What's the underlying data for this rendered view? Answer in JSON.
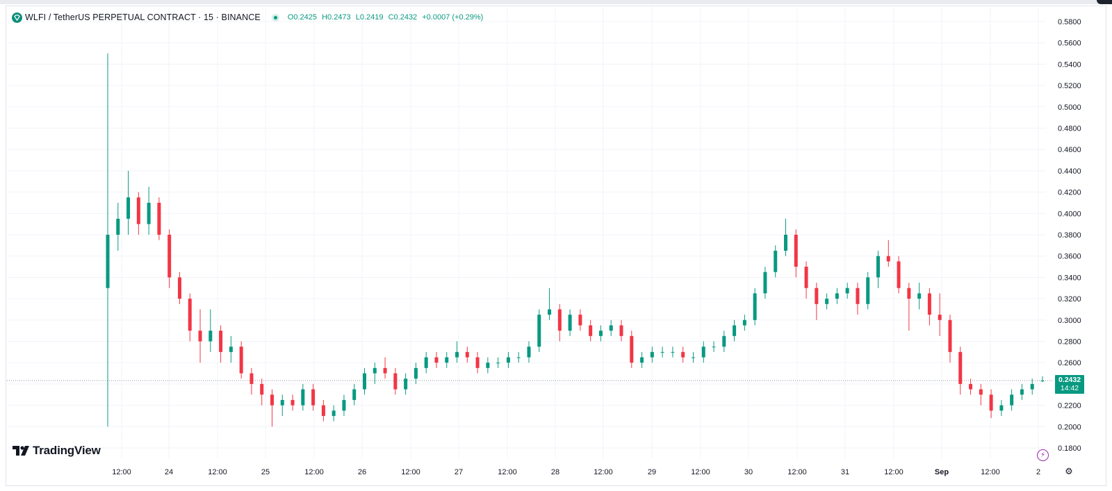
{
  "legend": {
    "symbol_text": "WLFI / TetherUS PERPETUAL CONTRACT · 15 · BINANCE",
    "open_key": "O",
    "open": "0.2425",
    "high_key": "H",
    "high": "0.2473",
    "low_key": "L",
    "low": "0.2419",
    "close_key": "C",
    "close": "0.2432",
    "change": "+0.0007 (+0.29%)"
  },
  "price_tag": {
    "price": "0.2432",
    "countdown": "14:42"
  },
  "brand": {
    "name": "TradingView"
  },
  "colors": {
    "up": "#089981",
    "down": "#f23645",
    "grid": "#f0f3fa",
    "axis_text": "#131722",
    "accent": "#9c27b0"
  },
  "icons": {
    "symbol_logo": "wlfi-logo-icon",
    "status": "market-open-dot-icon",
    "flash": "lightning-icon",
    "settings": "gear-icon"
  },
  "chart_data": {
    "type": "candlestick",
    "interval": "15",
    "y_axis": {
      "ticks": [
        "0.5800",
        "0.5600",
        "0.5400",
        "0.5200",
        "0.5000",
        "0.4800",
        "0.4600",
        "0.4400",
        "0.4200",
        "0.4000",
        "0.3800",
        "0.3600",
        "0.3400",
        "0.3200",
        "0.3000",
        "0.2800",
        "0.2600",
        "0.2400",
        "0.2200",
        "0.2000",
        "0.1800"
      ],
      "range": [
        0.17,
        0.585
      ],
      "position": "right"
    },
    "x_axis": {
      "ticks": [
        "12:00",
        "24",
        "12:00",
        "25",
        "12:00",
        "26",
        "12:00",
        "27",
        "12:00",
        "28",
        "12:00",
        "29",
        "12:00",
        "30",
        "12:00",
        "31",
        "12:00",
        "Sep",
        "12:00",
        "2"
      ]
    },
    "last_price": 0.2432,
    "grid": true,
    "series": [
      {
        "ohlc_points": [
          [
            0.33,
            0.55,
            0.2,
            0.38
          ],
          [
            0.38,
            0.41,
            0.365,
            0.395
          ],
          [
            0.395,
            0.44,
            0.38,
            0.415
          ],
          [
            0.415,
            0.42,
            0.38,
            0.39
          ],
          [
            0.39,
            0.425,
            0.38,
            0.41
          ],
          [
            0.41,
            0.415,
            0.375,
            0.38
          ],
          [
            0.38,
            0.385,
            0.33,
            0.34
          ],
          [
            0.34,
            0.345,
            0.315,
            0.32
          ],
          [
            0.32,
            0.325,
            0.28,
            0.29
          ],
          [
            0.29,
            0.31,
            0.26,
            0.28
          ],
          [
            0.28,
            0.31,
            0.27,
            0.29
          ],
          [
            0.29,
            0.295,
            0.26,
            0.27
          ],
          [
            0.27,
            0.285,
            0.26,
            0.275
          ],
          [
            0.275,
            0.28,
            0.245,
            0.25
          ],
          [
            0.25,
            0.255,
            0.23,
            0.24
          ],
          [
            0.24,
            0.245,
            0.22,
            0.23
          ],
          [
            0.23,
            0.235,
            0.2,
            0.22
          ],
          [
            0.22,
            0.23,
            0.21,
            0.225
          ],
          [
            0.225,
            0.23,
            0.215,
            0.22
          ],
          [
            0.22,
            0.24,
            0.215,
            0.235
          ],
          [
            0.235,
            0.24,
            0.215,
            0.22
          ],
          [
            0.22,
            0.225,
            0.205,
            0.21
          ],
          [
            0.21,
            0.22,
            0.205,
            0.215
          ],
          [
            0.215,
            0.23,
            0.21,
            0.225
          ],
          [
            0.225,
            0.24,
            0.22,
            0.235
          ],
          [
            0.235,
            0.255,
            0.23,
            0.25
          ],
          [
            0.25,
            0.26,
            0.24,
            0.255
          ],
          [
            0.255,
            0.265,
            0.245,
            0.25
          ],
          [
            0.25,
            0.255,
            0.23,
            0.235
          ],
          [
            0.235,
            0.25,
            0.23,
            0.245
          ],
          [
            0.245,
            0.26,
            0.24,
            0.255
          ],
          [
            0.255,
            0.27,
            0.25,
            0.265
          ],
          [
            0.265,
            0.27,
            0.255,
            0.26
          ],
          [
            0.26,
            0.27,
            0.255,
            0.265
          ],
          [
            0.265,
            0.28,
            0.26,
            0.27
          ],
          [
            0.27,
            0.275,
            0.26,
            0.265
          ],
          [
            0.265,
            0.27,
            0.25,
            0.255
          ],
          [
            0.255,
            0.265,
            0.25,
            0.26
          ],
          [
            0.26,
            0.265,
            0.255,
            0.26
          ],
          [
            0.26,
            0.27,
            0.255,
            0.265
          ],
          [
            0.265,
            0.27,
            0.26,
            0.265
          ],
          [
            0.265,
            0.28,
            0.26,
            0.275
          ],
          [
            0.275,
            0.31,
            0.27,
            0.305
          ],
          [
            0.305,
            0.33,
            0.3,
            0.31
          ],
          [
            0.31,
            0.315,
            0.28,
            0.29
          ],
          [
            0.29,
            0.31,
            0.285,
            0.305
          ],
          [
            0.305,
            0.31,
            0.29,
            0.295
          ],
          [
            0.295,
            0.3,
            0.28,
            0.285
          ],
          [
            0.285,
            0.295,
            0.28,
            0.29
          ],
          [
            0.29,
            0.3,
            0.285,
            0.295
          ],
          [
            0.295,
            0.3,
            0.28,
            0.285
          ],
          [
            0.285,
            0.29,
            0.255,
            0.26
          ],
          [
            0.26,
            0.27,
            0.255,
            0.265
          ],
          [
            0.265,
            0.275,
            0.26,
            0.27
          ],
          [
            0.27,
            0.275,
            0.265,
            0.27
          ],
          [
            0.27,
            0.275,
            0.265,
            0.27
          ],
          [
            0.27,
            0.275,
            0.26,
            0.265
          ],
          [
            0.265,
            0.27,
            0.26,
            0.265
          ],
          [
            0.265,
            0.28,
            0.26,
            0.275
          ],
          [
            0.275,
            0.28,
            0.27,
            0.275
          ],
          [
            0.275,
            0.29,
            0.27,
            0.285
          ],
          [
            0.285,
            0.3,
            0.28,
            0.295
          ],
          [
            0.295,
            0.305,
            0.29,
            0.3
          ],
          [
            0.3,
            0.33,
            0.295,
            0.325
          ],
          [
            0.325,
            0.35,
            0.32,
            0.345
          ],
          [
            0.345,
            0.37,
            0.34,
            0.365
          ],
          [
            0.365,
            0.395,
            0.36,
            0.38
          ],
          [
            0.38,
            0.385,
            0.34,
            0.35
          ],
          [
            0.35,
            0.355,
            0.32,
            0.33
          ],
          [
            0.33,
            0.335,
            0.3,
            0.315
          ],
          [
            0.315,
            0.325,
            0.31,
            0.32
          ],
          [
            0.32,
            0.33,
            0.315,
            0.325
          ],
          [
            0.325,
            0.335,
            0.32,
            0.33
          ],
          [
            0.33,
            0.335,
            0.305,
            0.315
          ],
          [
            0.315,
            0.345,
            0.31,
            0.34
          ],
          [
            0.34,
            0.365,
            0.33,
            0.36
          ],
          [
            0.36,
            0.375,
            0.35,
            0.355
          ],
          [
            0.355,
            0.36,
            0.325,
            0.33
          ],
          [
            0.33,
            0.335,
            0.29,
            0.32
          ],
          [
            0.32,
            0.335,
            0.31,
            0.325
          ],
          [
            0.325,
            0.33,
            0.295,
            0.305
          ],
          [
            0.305,
            0.325,
            0.285,
            0.3
          ],
          [
            0.3,
            0.305,
            0.26,
            0.27
          ],
          [
            0.27,
            0.275,
            0.23,
            0.24
          ],
          [
            0.24,
            0.245,
            0.23,
            0.235
          ],
          [
            0.235,
            0.24,
            0.22,
            0.23
          ],
          [
            0.23,
            0.235,
            0.208,
            0.215
          ],
          [
            0.215,
            0.225,
            0.21,
            0.22
          ],
          [
            0.22,
            0.235,
            0.215,
            0.23
          ],
          [
            0.23,
            0.24,
            0.225,
            0.235
          ],
          [
            0.235,
            0.245,
            0.23,
            0.24
          ],
          [
            0.2425,
            0.2473,
            0.2419,
            0.2432
          ]
        ]
      }
    ]
  }
}
